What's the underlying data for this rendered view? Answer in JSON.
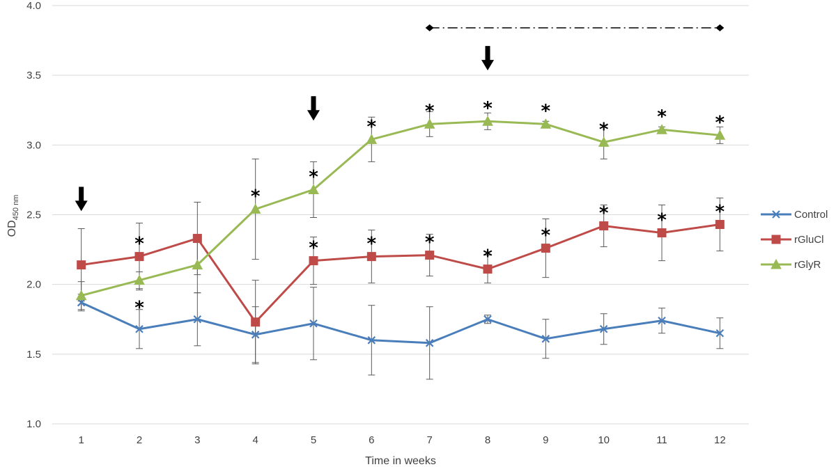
{
  "chart_data": {
    "type": "line",
    "title": "",
    "xlabel": "Time in weeks",
    "ylabel": "OD",
    "ylabel_sub": "450 nm",
    "ylim": [
      1.0,
      4.0
    ],
    "yticks": [
      "1.0",
      "1.5",
      "2.0",
      "2.5",
      "3.0",
      "3.5",
      "4.0"
    ],
    "grid": true,
    "legend_position": "right",
    "categories": [
      "1",
      "2",
      "3",
      "4",
      "5",
      "6",
      "7",
      "8",
      "9",
      "10",
      "11",
      "12"
    ],
    "series": [
      {
        "name": "Control",
        "color": "#4a7ebb",
        "marker": "x",
        "values": [
          1.87,
          1.68,
          1.75,
          1.64,
          1.72,
          1.6,
          1.58,
          1.75,
          1.61,
          1.68,
          1.74,
          1.65
        ],
        "errors": [
          0.06,
          0.14,
          0.19,
          0.2,
          0.26,
          0.25,
          0.26,
          0.03,
          0.14,
          0.11,
          0.09,
          0.11
        ]
      },
      {
        "name": "rGluCl",
        "color": "#be4b48",
        "marker": "square",
        "values": [
          2.14,
          2.2,
          2.33,
          1.73,
          2.17,
          2.2,
          2.21,
          2.11,
          2.26,
          2.42,
          2.37,
          2.43
        ],
        "errors": [
          0.26,
          0.24,
          0.26,
          0.3,
          0.17,
          0.19,
          0.15,
          0.1,
          0.21,
          0.15,
          0.2,
          0.19
        ]
      },
      {
        "name": "rGlyR",
        "color": "#98b954",
        "marker": "triangle",
        "values": [
          1.92,
          2.03,
          2.14,
          2.54,
          2.68,
          3.04,
          3.15,
          3.17,
          3.15,
          3.02,
          3.11,
          3.07
        ],
        "errors": [
          0.1,
          0.06,
          0.2,
          0.36,
          0.2,
          0.16,
          0.09,
          0.06,
          0.02,
          0.12,
          0.02,
          0.06
        ]
      }
    ],
    "significance_marks": {
      "symbol": "*",
      "rGlyR_weeks": [
        4,
        5,
        6,
        7,
        8,
        9,
        10,
        11,
        12
      ],
      "rGluCl_weeks": [
        2,
        5,
        6,
        7,
        8,
        9,
        10,
        11,
        12
      ],
      "below_weeks": [
        2
      ]
    },
    "annotations": {
      "immunization_arrows_weeks": [
        1,
        5,
        8
      ],
      "bracket_weeks": [
        7,
        12
      ]
    }
  }
}
